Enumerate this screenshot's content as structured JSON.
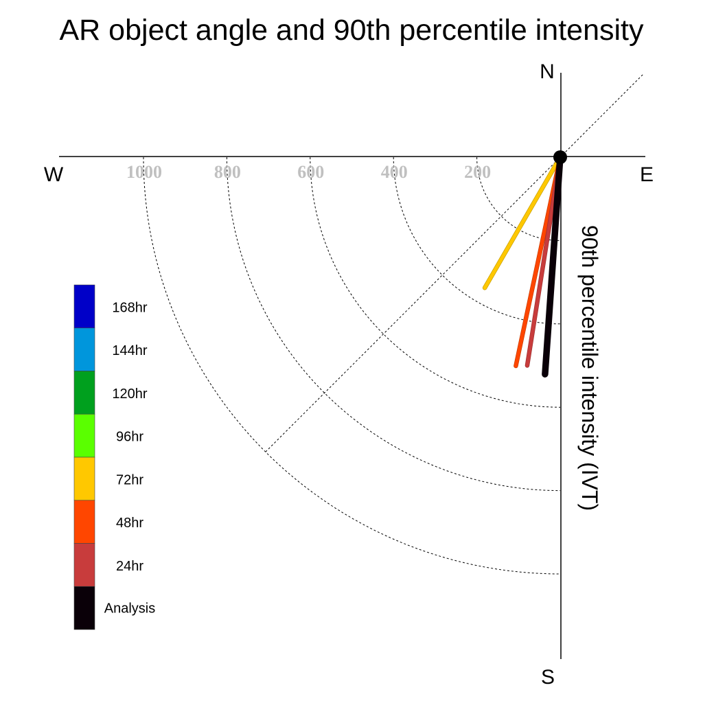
{
  "chart_data": {
    "type": "polar-vector",
    "title": "AR object angle and 90th percentile intensity",
    "compass": {
      "north": "N",
      "south": "S",
      "east": "E",
      "west": "W"
    },
    "radial_axis_label": "90th percentile intensity (IVT)",
    "radial_ticks": [
      200,
      400,
      600,
      800,
      1000
    ],
    "radial_tick_labels": [
      "200",
      "400",
      "600",
      "800",
      "1000"
    ],
    "radial_max": 1000,
    "reference_line_angle_deg": 45,
    "grid": "dashed quarter circles",
    "legend": [
      {
        "label": "168hr",
        "color": "#0000c8"
      },
      {
        "label": "144hr",
        "color": "#0096dc"
      },
      {
        "label": "120hr",
        "color": "#00a01e"
      },
      {
        "label": "96hr",
        "color": "#5aff00"
      },
      {
        "label": "72hr",
        "color": "#ffc800"
      },
      {
        "label": "48hr",
        "color": "#ff4600"
      },
      {
        "label": "24hr",
        "color": "#c83c3c"
      },
      {
        "label": "Analysis",
        "color": "#0a0008"
      }
    ],
    "series": [
      {
        "name": "72hr",
        "color": "#ffc800",
        "outline": "#c8a000",
        "angle_deg": 30,
        "intensity": 362
      },
      {
        "name": "48hr",
        "color": "#ff4600",
        "outline": "#c83c00",
        "angle_deg": 12,
        "intensity": 512
      },
      {
        "name": "24hr",
        "color": "#c83c3c",
        "outline": "#a03030",
        "angle_deg": 9,
        "intensity": 506
      },
      {
        "name": "Analysis",
        "color": "#0a0008",
        "outline": "#0a0008",
        "angle_deg": 4,
        "intensity": 522
      }
    ]
  }
}
